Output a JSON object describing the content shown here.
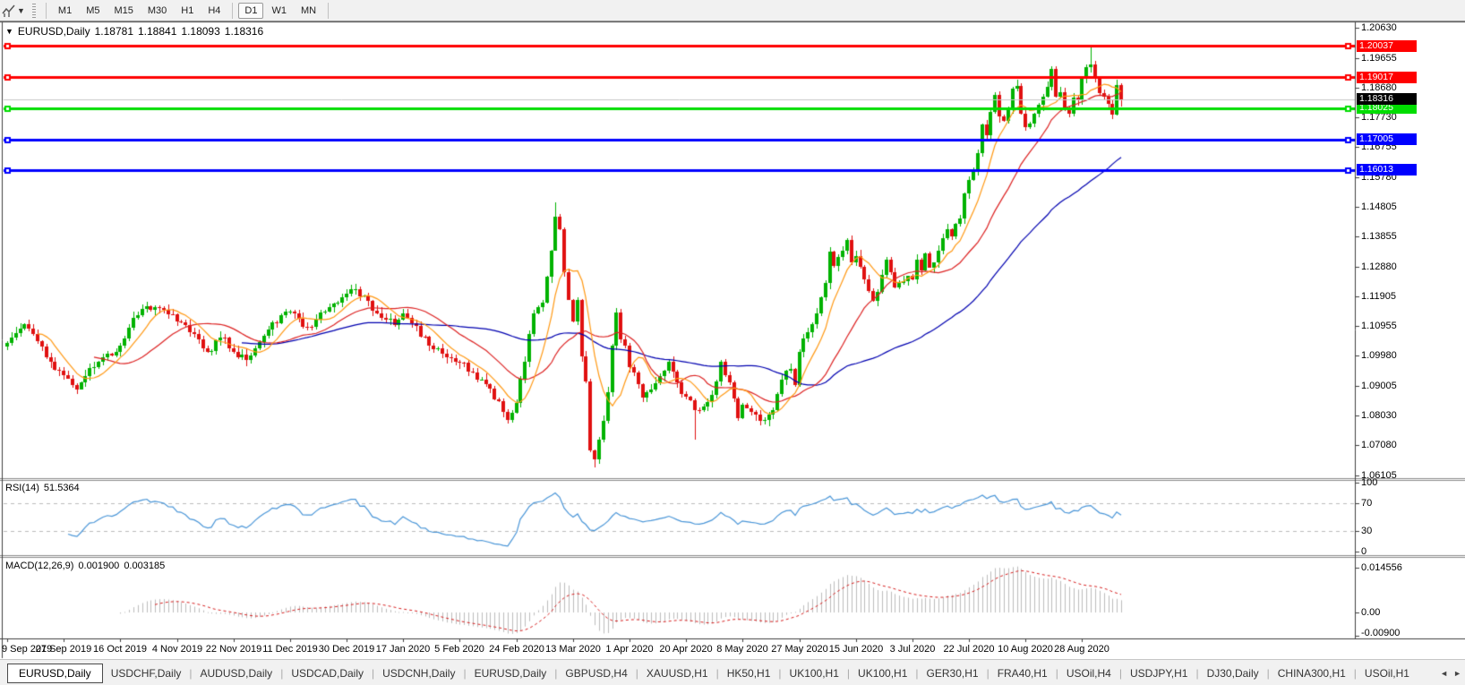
{
  "toolbar": {
    "timeframes": [
      "M1",
      "M5",
      "M15",
      "M30",
      "H1",
      "H4",
      "D1",
      "W1",
      "MN"
    ],
    "active_timeframe": "D1"
  },
  "chart": {
    "collapse_icon": "▼",
    "symbol_label": "EURUSD,Daily",
    "ohlc": {
      "open": "1.18781",
      "high": "1.18841",
      "low": "1.18093",
      "close": "1.18316"
    },
    "price_axis_ticks": [
      "1.20630",
      "1.19655",
      "1.18680",
      "1.17730",
      "1.16755",
      "1.15780",
      "1.14805",
      "1.13855",
      "1.12880",
      "1.11905",
      "1.10955",
      "1.09980",
      "1.09005",
      "1.08030",
      "1.07080",
      "1.06105"
    ],
    "hlines": [
      {
        "price": 1.20037,
        "label": "1.20037",
        "color": "#ff0000"
      },
      {
        "price": 1.19017,
        "label": "1.19017",
        "color": "#ff0000"
      },
      {
        "price": 1.18025,
        "label": "1.18025",
        "color": "#00dd00"
      },
      {
        "price": 1.17005,
        "label": "1.17005",
        "color": "#0000ff"
      },
      {
        "price": 1.16013,
        "label": "1.16013",
        "color": "#0000ff"
      }
    ],
    "current_price": {
      "price": 1.18316,
      "label": "1.18316",
      "box_color": "#000000",
      "line_color": "#c8c8c8"
    },
    "candles": {
      "anchors": [
        [
          0,
          1.104
        ],
        [
          2,
          1.1072
        ],
        [
          4,
          1.11
        ],
        [
          6,
          1.1068
        ],
        [
          9,
          1.0992
        ],
        [
          13,
          1.0935
        ],
        [
          16,
          1.089
        ],
        [
          18,
          1.0932
        ],
        [
          21,
          1.0978
        ],
        [
          26,
          1.103
        ],
        [
          29,
          1.1122
        ],
        [
          32,
          1.116
        ],
        [
          36,
          1.1148
        ],
        [
          39,
          1.111
        ],
        [
          43,
          1.1068
        ],
        [
          46,
          1.1012
        ],
        [
          49,
          1.1058
        ],
        [
          52,
          1.1012
        ],
        [
          55,
          1.0985
        ],
        [
          57,
          1.1022
        ],
        [
          60,
          1.1082
        ],
        [
          63,
          1.113
        ],
        [
          66,
          1.1135
        ],
        [
          69,
          1.1092
        ],
        [
          71,
          1.1115
        ],
        [
          74,
          1.1155
        ],
        [
          78,
          1.12
        ],
        [
          80,
          1.1215
        ],
        [
          83,
          1.1175
        ],
        [
          86,
          1.112
        ],
        [
          89,
          1.1098
        ],
        [
          91,
          1.1135
        ],
        [
          94,
          1.1095
        ],
        [
          97,
          1.1032
        ],
        [
          100,
          1.1005
        ],
        [
          104,
          1.0975
        ],
        [
          107,
          1.0945
        ],
        [
          110,
          1.0905
        ],
        [
          113,
          1.085
        ],
        [
          115,
          1.079
        ],
        [
          117,
          1.0845
        ],
        [
          119,
          1.098
        ],
        [
          121,
          1.1135
        ],
        [
          123,
          1.1172
        ],
        [
          125,
          1.134
        ],
        [
          126,
          1.145
        ],
        [
          127,
          1.1408
        ],
        [
          128,
          1.127
        ],
        [
          129,
          1.118
        ],
        [
          130,
          1.111
        ],
        [
          131,
          1.118
        ],
        [
          132,
          1.0995
        ],
        [
          133,
          1.0915
        ],
        [
          134,
          1.069
        ],
        [
          135,
          1.0662
        ],
        [
          136,
          1.0725
        ],
        [
          137,
          1.0788
        ],
        [
          138,
          1.088
        ],
        [
          139,
          1.103
        ],
        [
          140,
          1.114
        ],
        [
          141,
          1.1052
        ],
        [
          142,
          1.103
        ],
        [
          143,
          1.0962
        ],
        [
          145,
          1.0905
        ],
        [
          146,
          1.0862
        ],
        [
          148,
          1.089
        ],
        [
          150,
          1.0932
        ],
        [
          152,
          1.098
        ],
        [
          154,
          1.0912
        ],
        [
          156,
          1.0865
        ],
        [
          158,
          1.0822
        ],
        [
          160,
          1.0832
        ],
        [
          162,
          1.087
        ],
        [
          164,
          1.098
        ],
        [
          166,
          1.0912
        ],
        [
          168,
          1.0795
        ],
        [
          169,
          1.084
        ],
        [
          171,
          1.0815
        ],
        [
          174,
          1.079
        ],
        [
          176,
          1.0822
        ],
        [
          178,
          1.092
        ],
        [
          180,
          1.0955
        ],
        [
          181,
          1.0902
        ],
        [
          182,
          1.101
        ],
        [
          184,
          1.1075
        ],
        [
          185,
          1.11
        ],
        [
          186,
          1.1135
        ],
        [
          188,
          1.1235
        ],
        [
          189,
          1.1335
        ],
        [
          190,
          1.129
        ],
        [
          192,
          1.134
        ],
        [
          193,
          1.1375
        ],
        [
          194,
          1.13
        ],
        [
          195,
          1.1322
        ],
        [
          197,
          1.1245
        ],
        [
          199,
          1.1175
        ],
        [
          201,
          1.126
        ],
        [
          202,
          1.131
        ],
        [
          204,
          1.122
        ],
        [
          206,
          1.124
        ],
        [
          208,
          1.1245
        ],
        [
          209,
          1.131
        ],
        [
          210,
          1.1275
        ],
        [
          211,
          1.133
        ],
        [
          212,
          1.1285
        ],
        [
          213,
          1.13
        ],
        [
          214,
          1.134
        ],
        [
          216,
          1.141
        ],
        [
          217,
          1.1385
        ],
        [
          218,
          1.1425
        ],
        [
          219,
          1.1445
        ],
        [
          220,
          1.1525
        ],
        [
          221,
          1.157
        ],
        [
          222,
          1.1595
        ],
        [
          223,
          1.1655
        ],
        [
          224,
          1.175
        ],
        [
          225,
          1.1715
        ],
        [
          226,
          1.179
        ],
        [
          227,
          1.1845
        ],
        [
          228,
          1.1775
        ],
        [
          229,
          1.1762
        ],
        [
          230,
          1.18
        ],
        [
          231,
          1.1865
        ],
        [
          232,
          1.1875
        ],
        [
          233,
          1.1785
        ],
        [
          234,
          1.174
        ],
        [
          236,
          1.1785
        ],
        [
          237,
          1.1812
        ],
        [
          238,
          1.184
        ],
        [
          239,
          1.187
        ],
        [
          240,
          1.193
        ],
        [
          241,
          1.184
        ],
        [
          242,
          1.1855
        ],
        [
          243,
          1.1795
        ],
        [
          244,
          1.1785
        ],
        [
          245,
          1.1835
        ],
        [
          246,
          1.183
        ],
        [
          247,
          1.19
        ],
        [
          248,
          1.1935
        ],
        [
          249,
          1.1945
        ],
        [
          250,
          1.19
        ],
        [
          251,
          1.1852
        ],
        [
          252,
          1.184
        ],
        [
          253,
          1.1815
        ],
        [
          254,
          1.178
        ],
        [
          255,
          1.1878
        ],
        [
          256,
          1.18316
        ]
      ],
      "wick_overrides": [
        {
          "bar": 115,
          "low": 1.0778
        },
        {
          "bar": 126,
          "high": 1.1495
        },
        {
          "bar": 135,
          "low": 1.0636
        },
        {
          "bar": 158,
          "low": 1.0727
        },
        {
          "bar": 249,
          "high": 1.2009
        },
        {
          "bar": 256,
          "open": 1.18781,
          "high": 1.18841,
          "low": 1.18093,
          "close": 1.18316
        }
      ]
    }
  },
  "rsi": {
    "name": "RSI(14)",
    "value": "51.5364",
    "ticks": [
      {
        "v": 100,
        "label": "100"
      },
      {
        "v": 70,
        "label": "70"
      },
      {
        "v": 30,
        "label": "30"
      },
      {
        "v": 0,
        "label": "0"
      }
    ],
    "levels": [
      70,
      30
    ]
  },
  "macd": {
    "name": "MACD(12,26,9)",
    "macd_value": "0.001900",
    "signal_value": "0.003185",
    "ticks": [
      {
        "v": 0.014556,
        "label": "0.014556"
      },
      {
        "v": 0,
        "label": "0.00"
      },
      {
        "v": -0.009,
        "label": "-0.00900"
      }
    ]
  },
  "date_axis": {
    "labels": [
      "9 Sep 2019",
      "27 Sep 2019",
      "16 Oct 2019",
      "4 Nov 2019",
      "22 Nov 2019",
      "11 Dec 2019",
      "30 Dec 2019",
      "17 Jan 2020",
      "5 Feb 2020",
      "24 Feb 2020",
      "13 Mar 2020",
      "1 Apr 2020",
      "20 Apr 2020",
      "8 May 2020",
      "27 May 2020",
      "15 Jun 2020",
      "3 Jul 2020",
      "22 Jul 2020",
      "10 Aug 2020",
      "28 Aug 2020"
    ]
  },
  "tabs": {
    "items": [
      "EURUSD,Daily",
      "USDCHF,Daily",
      "AUDUSD,Daily",
      "USDCAD,Daily",
      "USDCNH,Daily",
      "EURUSD,Daily",
      "GBPUSD,H4",
      "XAUUSD,H1",
      "HK50,H1",
      "UK100,H1",
      "UK100,H1",
      "GER30,H1",
      "FRA40,H1",
      "USOil,H4",
      "USDJPY,H1",
      "DJ30,Daily",
      "CHINA300,H1",
      "USOil,H1"
    ],
    "active_index": 0,
    "scroll_left": "◄",
    "scroll_right": "►"
  },
  "colors": {
    "candle_up": "#00b200",
    "candle_down": "#e01010",
    "ma_fast": "#ff9914",
    "ma_mid": "#dd2222",
    "ma_slow": "#0000b0",
    "rsi_line": "#4a96d8",
    "rsi_level_dash": "#bcbcbc",
    "macd_hist": "#bdbdbd",
    "macd_signal": "#d82020",
    "axis_line": "#404040",
    "panel_split": "#8a8a8a"
  }
}
